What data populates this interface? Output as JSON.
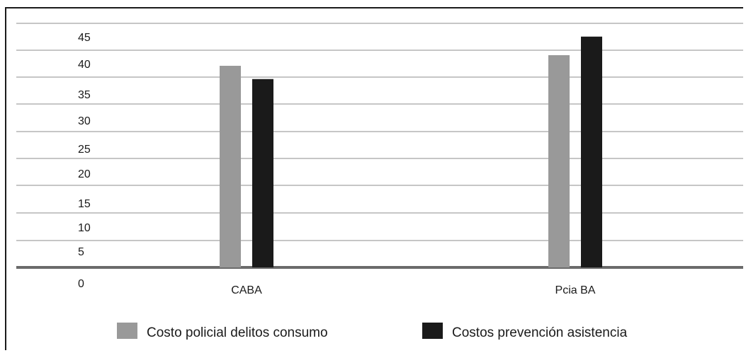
{
  "chart_data": {
    "type": "bar",
    "categories": [
      "CABA",
      "Pcia BA"
    ],
    "series": [
      {
        "name": "Costo policial delitos consumo",
        "color": "#999999",
        "values": [
          38,
          40
        ]
      },
      {
        "name": "Costos prevención asistencia",
        "color": "#1a1a1a",
        "values": [
          35.5,
          43.5
        ]
      }
    ],
    "y_ticks": [
      "45",
      "40",
      "35",
      "30",
      "25",
      "20",
      "15",
      "10",
      "5",
      "0"
    ],
    "ylim": [
      0,
      45
    ],
    "grid": true,
    "legend_position": "bottom",
    "title": "",
    "xlabel": "",
    "ylabel": ""
  }
}
